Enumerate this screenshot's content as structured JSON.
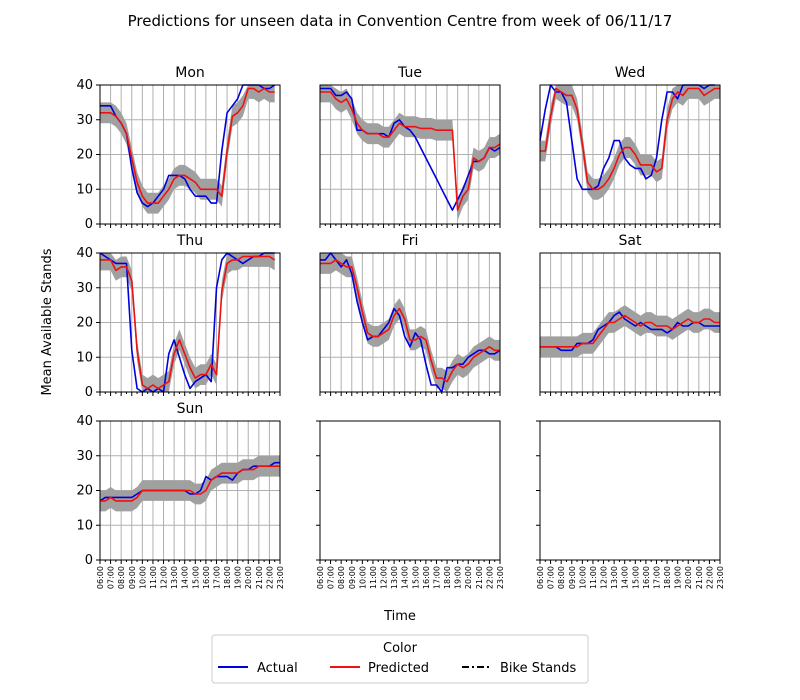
{
  "figure": {
    "title": "Predictions for unseen data in Convention Centre from week of 06/11/17",
    "xlabel": "Time",
    "ylabel": "Mean Available Stands"
  },
  "legend": {
    "title": "Color",
    "entries": [
      {
        "label": "Actual",
        "color": "#0000dd",
        "style": "solid"
      },
      {
        "label": "Predicted",
        "color": "#ee1111",
        "style": "solid"
      },
      {
        "label": "Bike Stands",
        "color": "#000000",
        "style": "dashdot"
      }
    ]
  },
  "colors": {
    "actual": "#0000dd",
    "predicted": "#ee1111",
    "band": "#a0a0a0",
    "grid": "#b0b0b0"
  },
  "chart_data": {
    "type": "line",
    "ylim": [
      0,
      40
    ],
    "yticks": [
      0,
      10,
      20,
      30,
      40
    ],
    "grid": true,
    "legend_position": "bottom-center",
    "x_tick_labels": [
      "06:00",
      "07:00",
      "08:00",
      "09:00",
      "10:00",
      "11:00",
      "12:00",
      "13:00",
      "14:00",
      "15:00",
      "16:00",
      "17:00",
      "18:00",
      "19:00",
      "20:00",
      "21:00",
      "22:00",
      "23:00"
    ],
    "subplots": [
      {
        "title": "Mon",
        "actual": [
          34,
          34,
          34,
          31,
          29,
          26,
          16,
          9,
          6,
          5,
          6,
          8,
          10,
          14,
          14,
          14,
          13,
          10,
          8,
          8,
          8,
          6,
          6,
          21,
          32,
          34,
          36,
          40,
          40,
          40,
          40,
          39,
          39,
          40
        ],
        "predicted": [
          32,
          32,
          32,
          31,
          29,
          26,
          19,
          12,
          8,
          6,
          6,
          6,
          8,
          10,
          13,
          14,
          14,
          13,
          12,
          10,
          10,
          10,
          10,
          8,
          21,
          31,
          32,
          34,
          39,
          39,
          38,
          39,
          38,
          38
        ]
      },
      {
        "title": "Tue",
        "actual": [
          39,
          39,
          39,
          37,
          37,
          38,
          36,
          27,
          27,
          26,
          26,
          26,
          26,
          25,
          29,
          30,
          28,
          27,
          25,
          22,
          19,
          16,
          13,
          10,
          7,
          4,
          7,
          10,
          14,
          18,
          18,
          19,
          22,
          21,
          22
        ],
        "predicted": [
          38,
          38,
          38,
          36,
          35,
          36,
          33,
          29,
          27,
          26,
          26,
          26,
          25,
          25,
          27,
          29,
          28,
          28,
          28,
          27.5,
          27.5,
          27.5,
          27,
          27,
          27,
          27,
          4,
          8,
          10,
          19,
          18,
          19,
          22,
          22,
          23
        ]
      },
      {
        "title": "Wed",
        "actual": [
          24,
          33,
          40,
          38,
          38,
          35,
          24,
          13,
          10,
          10,
          10,
          11,
          16,
          19,
          24,
          24,
          19,
          17,
          16,
          16,
          13,
          14,
          19,
          30,
          38,
          38,
          36,
          40,
          40,
          40,
          40,
          39,
          40,
          40
        ],
        "predicted": [
          21,
          21,
          31,
          39,
          38,
          37,
          37,
          33,
          23,
          12,
          10,
          10,
          11,
          13,
          16,
          20,
          22,
          22,
          20,
          17,
          17,
          17,
          15,
          16,
          30,
          36,
          38,
          37,
          39,
          39,
          39,
          37,
          38,
          39,
          39
        ]
      },
      {
        "title": "Thu",
        "actual": [
          40,
          39,
          38,
          37,
          37,
          37,
          12,
          1,
          0,
          1,
          0,
          1,
          0,
          11,
          15,
          10,
          5,
          1,
          3,
          4,
          5,
          3,
          30,
          38,
          40,
          39,
          38,
          37,
          38,
          39,
          39,
          40,
          40,
          40
        ],
        "predicted": [
          38,
          38,
          38,
          35,
          36,
          36,
          32,
          12,
          2,
          1,
          2,
          1,
          2,
          3,
          11,
          15,
          11,
          7,
          4,
          5,
          5,
          8,
          5,
          29,
          37,
          38,
          38,
          39,
          39,
          39,
          39,
          39,
          39,
          38
        ]
      },
      {
        "title": "Fri",
        "actual": [
          38,
          38,
          40,
          38,
          36,
          38,
          34,
          26,
          20,
          15,
          16,
          16,
          18,
          20,
          24,
          22,
          16,
          13,
          17,
          15,
          8,
          2,
          2,
          0,
          7,
          7,
          8,
          8,
          10,
          11,
          12,
          12,
          11,
          11,
          12
        ],
        "predicted": [
          37,
          37,
          37,
          38,
          37,
          36,
          36,
          30,
          23,
          17,
          16,
          16,
          17,
          18,
          22,
          24,
          21,
          15,
          15,
          16,
          15,
          9,
          4,
          4,
          3,
          6,
          8,
          7,
          8,
          10,
          11,
          12,
          13,
          12,
          12
        ]
      },
      {
        "title": "Sat",
        "actual": [
          13,
          13,
          13,
          13,
          12,
          12,
          12,
          14,
          14,
          14,
          15,
          18,
          19,
          20,
          22,
          23,
          21,
          20,
          19,
          20,
          19,
          18,
          18,
          18,
          17,
          18,
          20,
          19,
          19,
          20,
          20,
          19,
          19,
          19,
          19
        ],
        "predicted": [
          13,
          13,
          13,
          13,
          13,
          13,
          13,
          13,
          14,
          14,
          14,
          16,
          18,
          20,
          20,
          21,
          22,
          21,
          20,
          19,
          20,
          20,
          19,
          19,
          19,
          18,
          19,
          20,
          21,
          20,
          20,
          21,
          21,
          20,
          20
        ]
      },
      {
        "title": "Sun",
        "actual": [
          17,
          18,
          18,
          18,
          18,
          18,
          18,
          19,
          20,
          20,
          20,
          20,
          20,
          20,
          20,
          20,
          20,
          19,
          19,
          20,
          24,
          23,
          24,
          24,
          24,
          23,
          25,
          26,
          26,
          27,
          27,
          27,
          27,
          28,
          28
        ],
        "predicted": [
          17,
          17,
          18,
          17,
          17,
          17,
          17,
          18,
          20,
          20,
          20,
          20,
          20,
          20,
          20,
          20,
          20,
          20,
          19,
          19,
          20,
          23,
          24,
          25,
          25,
          25,
          25,
          26,
          26,
          26,
          27,
          27,
          27,
          27,
          27
        ]
      }
    ]
  }
}
